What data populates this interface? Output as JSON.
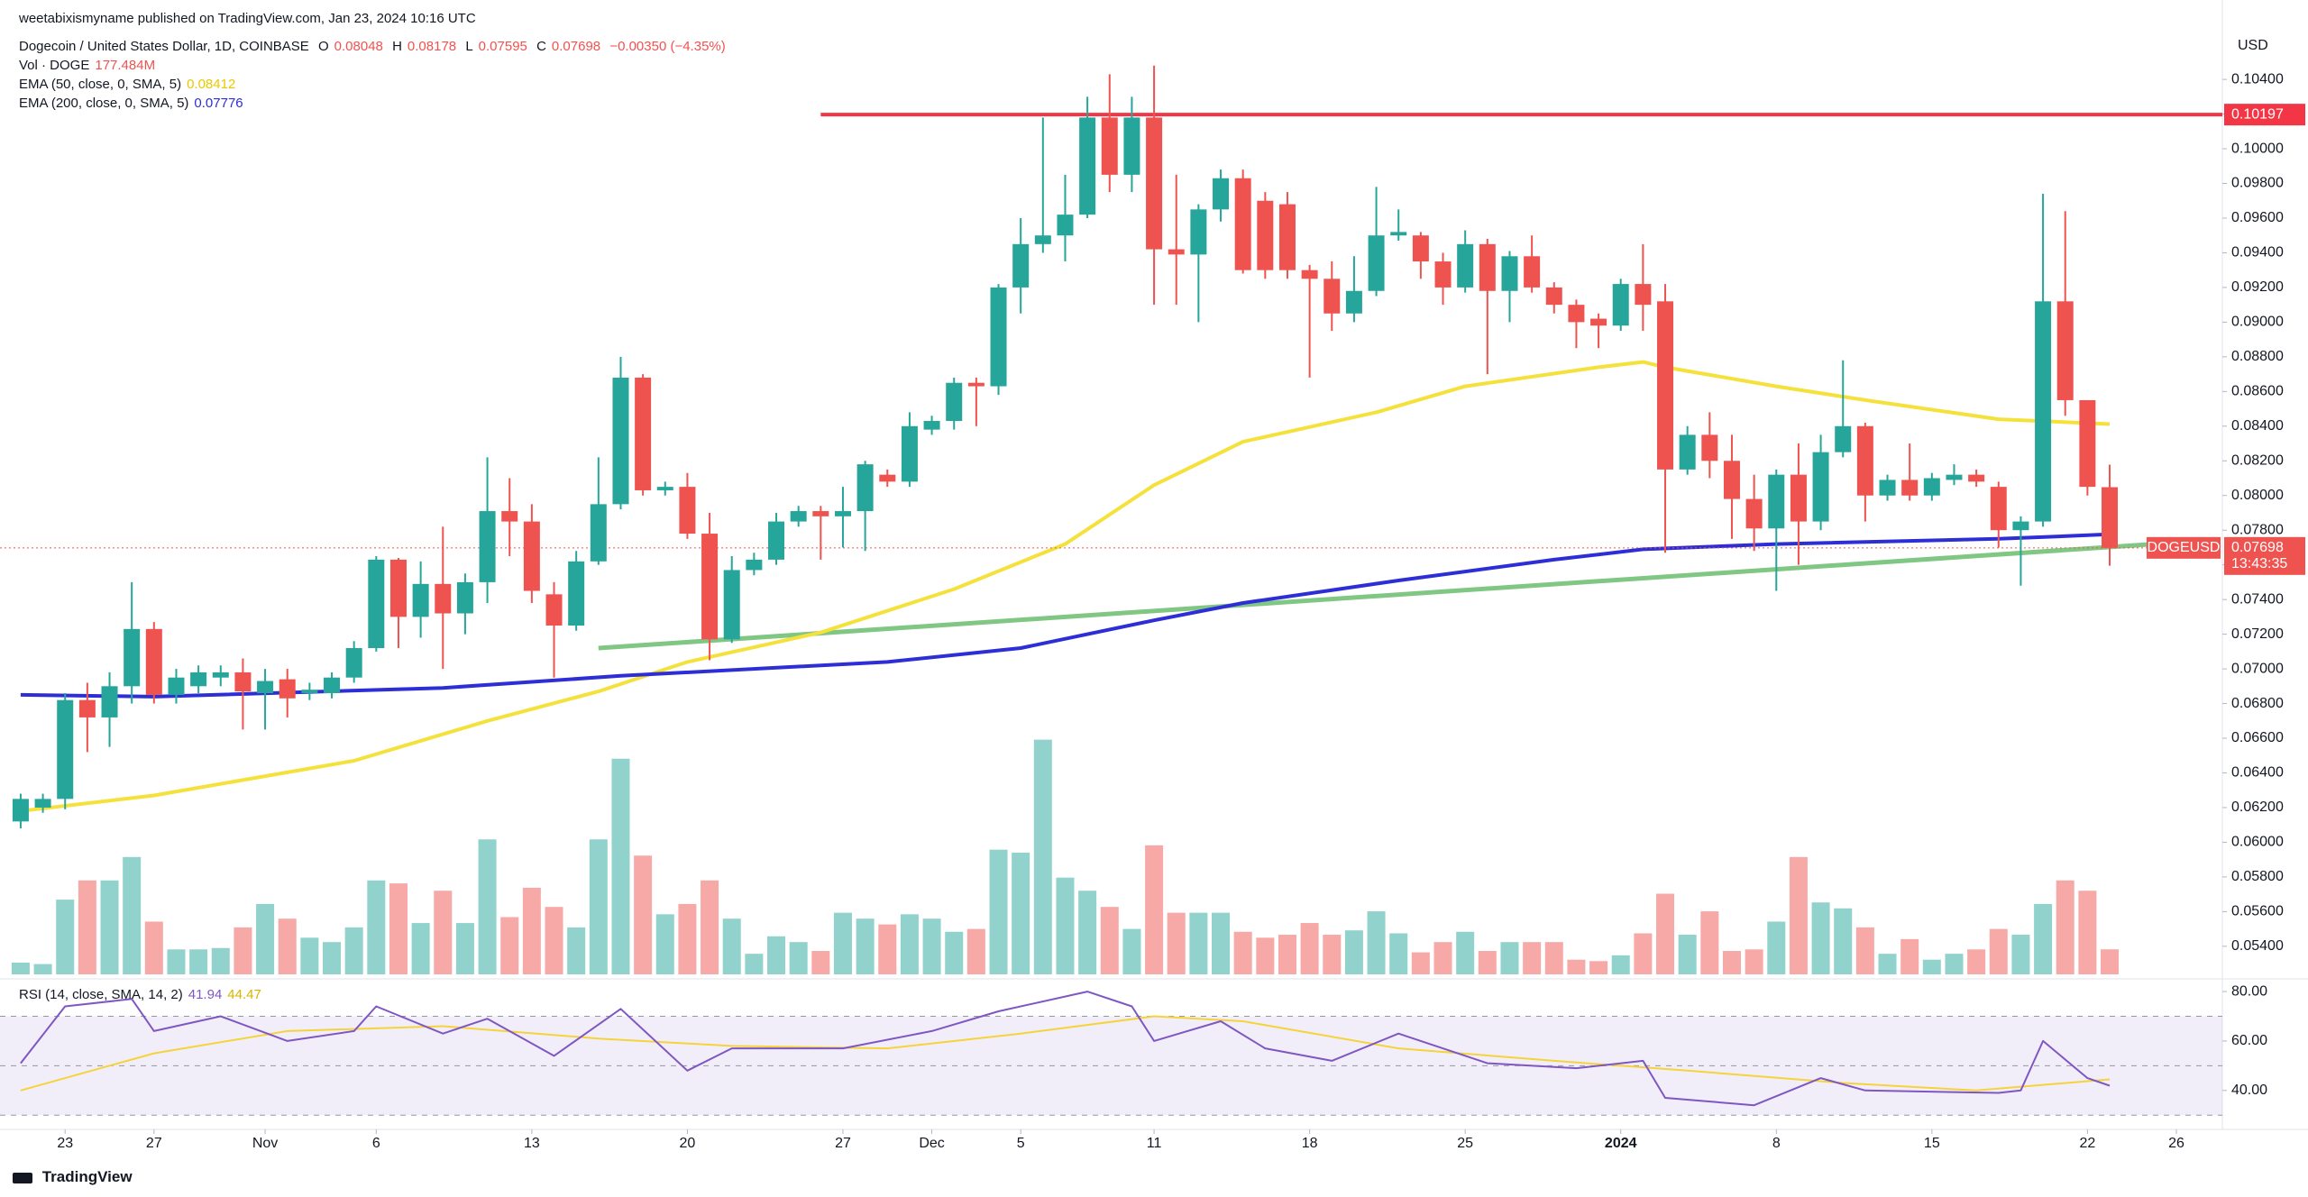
{
  "chart_data": {
    "type": "candlestick",
    "published": "weetabixismyname published on TradingView.com, Jan 23, 2024 10:16 UTC",
    "title": "Dogecoin / United States Dollar, 1D, COINBASE",
    "ohlc_labels": [
      "O",
      "H",
      "L",
      "C"
    ],
    "change": "−0.00350 (−4.35%)",
    "volume_name": "Vol · DOGE",
    "volume_label": "177.484M",
    "currency": "USD",
    "symbol": "DOGEUSD",
    "countdown": "13:43:35",
    "brand": "TradingView",
    "up_color": "#26a69a",
    "down_color": "#ef5350",
    "grid": false,
    "xlim": [
      -0.93,
      99.07
    ],
    "xticks": [
      {
        "value": 2,
        "label": "23"
      },
      {
        "value": 6,
        "label": "27"
      },
      {
        "value": 11,
        "label": "Nov"
      },
      {
        "value": 16,
        "label": "6"
      },
      {
        "value": 23,
        "label": "13"
      },
      {
        "value": 30,
        "label": "20"
      },
      {
        "value": 37,
        "label": "27"
      },
      {
        "value": 41,
        "label": "Dec"
      },
      {
        "value": 45,
        "label": "5"
      },
      {
        "value": 51,
        "label": "11"
      },
      {
        "value": 58,
        "label": "18"
      },
      {
        "value": 65,
        "label": "25"
      },
      {
        "value": 72,
        "label": "2024"
      },
      {
        "value": 79,
        "label": "8"
      },
      {
        "value": 86,
        "label": "15"
      },
      {
        "value": 93,
        "label": "22"
      },
      {
        "value": 97,
        "label": "26"
      }
    ],
    "ylim": [
      0.05238,
      0.10858
    ],
    "yticks": [
      {
        "value": 0.054,
        "label": "0.05400"
      },
      {
        "value": 0.056,
        "label": "0.05600"
      },
      {
        "value": 0.058,
        "label": "0.05800"
      },
      {
        "value": 0.06,
        "label": "0.06000"
      },
      {
        "value": 0.062,
        "label": "0.06200"
      },
      {
        "value": 0.064,
        "label": "0.06400"
      },
      {
        "value": 0.066,
        "label": "0.06600"
      },
      {
        "value": 0.068,
        "label": "0.06800"
      },
      {
        "value": 0.07,
        "label": "0.07000"
      },
      {
        "value": 0.072,
        "label": "0.07200"
      },
      {
        "value": 0.074,
        "label": "0.07400"
      },
      {
        "value": 0.076,
        "label": "0.07600"
      },
      {
        "value": 0.078,
        "label": "0.07800"
      },
      {
        "value": 0.08,
        "label": "0.08000"
      },
      {
        "value": 0.082,
        "label": "0.08200"
      },
      {
        "value": 0.084,
        "label": "0.08400"
      },
      {
        "value": 0.086,
        "label": "0.08600"
      },
      {
        "value": 0.088,
        "label": "0.08800"
      },
      {
        "value": 0.09,
        "label": "0.09000"
      },
      {
        "value": 0.092,
        "label": "0.09200"
      },
      {
        "value": 0.094,
        "label": "0.09400"
      },
      {
        "value": 0.096,
        "label": "0.09600"
      },
      {
        "value": 0.098,
        "label": "0.09800"
      },
      {
        "value": 0.1,
        "label": "0.10000"
      },
      {
        "value": 0.102,
        "label": "0.10200"
      },
      {
        "value": 0.104,
        "label": "0.10400"
      }
    ],
    "open": [
      0.0612,
      0.062,
      0.0625,
      0.0682,
      0.0672,
      0.069,
      0.0723,
      0.0685,
      0.069,
      0.0695,
      0.0698,
      0.0686,
      0.0694,
      0.0686,
      0.0686,
      0.0695,
      0.0712,
      0.0763,
      0.073,
      0.0749,
      0.0732,
      0.075,
      0.0791,
      0.0785,
      0.0743,
      0.0725,
      0.0762,
      0.0795,
      0.0868,
      0.0803,
      0.0805,
      0.0778,
      0.0717,
      0.0757,
      0.0763,
      0.0785,
      0.0791,
      0.0788,
      0.0791,
      0.0812,
      0.0808,
      0.0838,
      0.0843,
      0.0865,
      0.0863,
      0.092,
      0.0945,
      0.095,
      0.0962,
      0.1018,
      0.0985,
      0.1018,
      0.0942,
      0.0939,
      0.0965,
      0.0983,
      0.097,
      0.0968,
      0.093,
      0.0925,
      0.0905,
      0.0918,
      0.095,
      0.095,
      0.0935,
      0.092,
      0.0945,
      0.0918,
      0.0938,
      0.092,
      0.091,
      0.0902,
      0.0898,
      0.0922,
      0.0912,
      0.0815,
      0.0835,
      0.082,
      0.0798,
      0.0781,
      0.0812,
      0.0785,
      0.0825,
      0.084,
      0.08,
      0.0809,
      0.08,
      0.0809,
      0.0812,
      0.0805,
      0.078,
      0.0785,
      0.0912,
      0.0855,
      0.08048
    ],
    "high": [
      0.0628,
      0.0628,
      0.0686,
      0.0692,
      0.0698,
      0.075,
      0.0727,
      0.07,
      0.0702,
      0.0702,
      0.0706,
      0.07,
      0.07,
      0.0692,
      0.0698,
      0.0716,
      0.0765,
      0.0764,
      0.0762,
      0.0782,
      0.0755,
      0.0822,
      0.081,
      0.0795,
      0.075,
      0.0768,
      0.0822,
      0.088,
      0.087,
      0.0808,
      0.0813,
      0.079,
      0.0765,
      0.0767,
      0.079,
      0.0794,
      0.0794,
      0.0805,
      0.082,
      0.0815,
      0.0848,
      0.0846,
      0.0868,
      0.0868,
      0.0922,
      0.096,
      0.1018,
      0.0985,
      0.103,
      0.1043,
      0.103,
      0.1048,
      0.0985,
      0.0968,
      0.0988,
      0.0988,
      0.0975,
      0.0975,
      0.0933,
      0.0935,
      0.0938,
      0.0978,
      0.0965,
      0.0952,
      0.094,
      0.0953,
      0.0948,
      0.0941,
      0.095,
      0.0923,
      0.0913,
      0.0905,
      0.0925,
      0.0945,
      0.0922,
      0.084,
      0.0848,
      0.0835,
      0.0812,
      0.0815,
      0.083,
      0.0835,
      0.0878,
      0.0842,
      0.0812,
      0.083,
      0.0813,
      0.0818,
      0.0815,
      0.0808,
      0.0788,
      0.0974,
      0.0964,
      0.0855,
      0.08178
    ],
    "low": [
      0.0608,
      0.0617,
      0.0619,
      0.0652,
      0.0655,
      0.068,
      0.068,
      0.068,
      0.0686,
      0.069,
      0.0665,
      0.0665,
      0.0672,
      0.0682,
      0.0683,
      0.0692,
      0.071,
      0.0712,
      0.0718,
      0.07,
      0.072,
      0.0738,
      0.0765,
      0.0738,
      0.0695,
      0.0722,
      0.076,
      0.0792,
      0.08,
      0.08,
      0.0775,
      0.0705,
      0.0715,
      0.0754,
      0.076,
      0.0782,
      0.0763,
      0.077,
      0.0768,
      0.0805,
      0.0805,
      0.0835,
      0.0838,
      0.084,
      0.0858,
      0.0905,
      0.094,
      0.0935,
      0.096,
      0.0975,
      0.0975,
      0.091,
      0.091,
      0.09,
      0.0958,
      0.0928,
      0.0925,
      0.0925,
      0.0868,
      0.0895,
      0.09,
      0.0915,
      0.0947,
      0.0925,
      0.091,
      0.0917,
      0.087,
      0.09,
      0.0917,
      0.0905,
      0.0885,
      0.0885,
      0.0895,
      0.0895,
      0.0767,
      0.0812,
      0.081,
      0.0775,
      0.0768,
      0.0745,
      0.076,
      0.078,
      0.0822,
      0.0785,
      0.0797,
      0.0797,
      0.0797,
      0.0806,
      0.0805,
      0.077,
      0.0748,
      0.0782,
      0.0846,
      0.08,
      0.07595
    ],
    "close": [
      0.0625,
      0.0625,
      0.0682,
      0.0672,
      0.069,
      0.0723,
      0.0685,
      0.0695,
      0.0698,
      0.0698,
      0.0687,
      0.0693,
      0.0683,
      0.0688,
      0.0695,
      0.0712,
      0.0763,
      0.073,
      0.0749,
      0.0732,
      0.075,
      0.0791,
      0.0785,
      0.0745,
      0.0725,
      0.0762,
      0.0795,
      0.0868,
      0.0803,
      0.0805,
      0.0778,
      0.0717,
      0.0757,
      0.0763,
      0.0785,
      0.0791,
      0.0788,
      0.0791,
      0.0818,
      0.0808,
      0.084,
      0.0843,
      0.0865,
      0.0863,
      0.092,
      0.0945,
      0.095,
      0.0962,
      0.1018,
      0.0985,
      0.1018,
      0.0942,
      0.0939,
      0.0965,
      0.0983,
      0.093,
      0.093,
      0.093,
      0.0925,
      0.0905,
      0.0918,
      0.095,
      0.0952,
      0.0935,
      0.092,
      0.0945,
      0.0918,
      0.0938,
      0.092,
      0.091,
      0.09,
      0.0898,
      0.0922,
      0.091,
      0.0815,
      0.0835,
      0.082,
      0.0798,
      0.0781,
      0.0812,
      0.0785,
      0.0825,
      0.084,
      0.08,
      0.0809,
      0.08,
      0.081,
      0.0812,
      0.0808,
      0.078,
      0.0785,
      0.0912,
      0.0855,
      0.0805,
      0.07698
    ],
    "volume_ylim": [
      0,
      1700
    ],
    "volume": [
      83,
      73,
      530,
      666,
      666,
      832,
      374,
      177,
      177,
      187,
      333,
      499,
      395,
      260,
      229,
      333,
      666,
      645,
      364,
      593,
      364,
      957,
      406,
      614,
      478,
      333,
      957,
      1529,
      842,
      426,
      499,
      666,
      395,
      146,
      270,
      229,
      166,
      437,
      395,
      354,
      426,
      395,
      302,
      322,
      884,
      863,
      1664,
      686,
      593,
      478,
      322,
      915,
      437,
      437,
      437,
      302,
      260,
      281,
      364,
      281,
      312,
      447,
      291,
      156,
      229,
      302,
      166,
      229,
      229,
      229,
      104,
      94,
      135,
      291,
      572,
      281,
      447,
      166,
      177,
      374,
      832,
      510,
      468,
      333,
      146,
      250,
      104,
      146,
      177,
      322,
      281,
      499,
      666,
      593,
      177.484
    ],
    "lines": [
      {
        "name": "EMA (50, close, 0, SMA, 5)",
        "color": "#f5e13b",
        "x": [
          0,
          6,
          15,
          21,
          26,
          30,
          36,
          42,
          47,
          51,
          55,
          61,
          65,
          71,
          73,
          74,
          79,
          83,
          89,
          94
        ],
        "values": [
          0.0618,
          0.0627,
          0.0647,
          0.067,
          0.0687,
          0.0704,
          0.0721,
          0.0746,
          0.0772,
          0.0806,
          0.0831,
          0.0848,
          0.0863,
          0.0874,
          0.0877,
          0.0874,
          0.0863,
          0.0855,
          0.0844,
          0.08412
        ]
      },
      {
        "name": "EMA (200, close, 0, SMA, 5)",
        "color": "#2e2ed6",
        "x": [
          0,
          6,
          19,
          27,
          39,
          45,
          51,
          55,
          62,
          69,
          73,
          79,
          89,
          94
        ],
        "values": [
          0.0685,
          0.0684,
          0.0689,
          0.0696,
          0.0704,
          0.0712,
          0.0728,
          0.0738,
          0.0751,
          0.0763,
          0.0769,
          0.0772,
          0.0775,
          0.07776
        ]
      }
    ],
    "trendline": {
      "color": "#81c784",
      "x": [
        26,
        96
      ],
      "values": [
        0.0712,
        0.0772
      ]
    },
    "hline": {
      "color": "#f23645",
      "x_start": 36,
      "value": 0.10197
    },
    "rsi": {
      "name": "RSI (14, close, SMA, 14, 2)",
      "ylim": [
        25.7,
        83.3
      ],
      "yticks": [
        {
          "value": 40,
          "label": "40.00"
        },
        {
          "value": 60,
          "label": "60.00"
        },
        {
          "value": 80,
          "label": "80.00"
        }
      ],
      "bands": [
        30,
        50,
        70
      ],
      "series": [
        {
          "color": "#7e57c2",
          "x": [
            0,
            2,
            5,
            6,
            9,
            12,
            15,
            16,
            19,
            21,
            24,
            27,
            30,
            32,
            37,
            41,
            44,
            48,
            50,
            51,
            54,
            56,
            59,
            62,
            66,
            70,
            73,
            74,
            78,
            81,
            83,
            89,
            90,
            91,
            93,
            94
          ],
          "values": [
            51,
            74,
            77,
            64,
            70,
            60,
            64,
            74,
            63,
            69,
            54,
            73,
            48,
            57,
            57,
            64,
            72,
            80,
            74,
            60,
            68,
            57,
            52,
            63,
            51,
            49,
            52,
            37,
            34,
            45,
            40,
            39,
            40,
            60,
            45,
            41.94
          ]
        },
        {
          "color": "#f5d33b",
          "x": [
            0,
            6,
            12,
            19,
            26,
            32,
            39,
            45,
            51,
            55,
            62,
            69,
            75,
            82,
            88,
            94
          ],
          "values": [
            40,
            55,
            64,
            66,
            61,
            58,
            57,
            63,
            70,
            68,
            57,
            52,
            48,
            43,
            40,
            44.47
          ]
        }
      ]
    }
  }
}
